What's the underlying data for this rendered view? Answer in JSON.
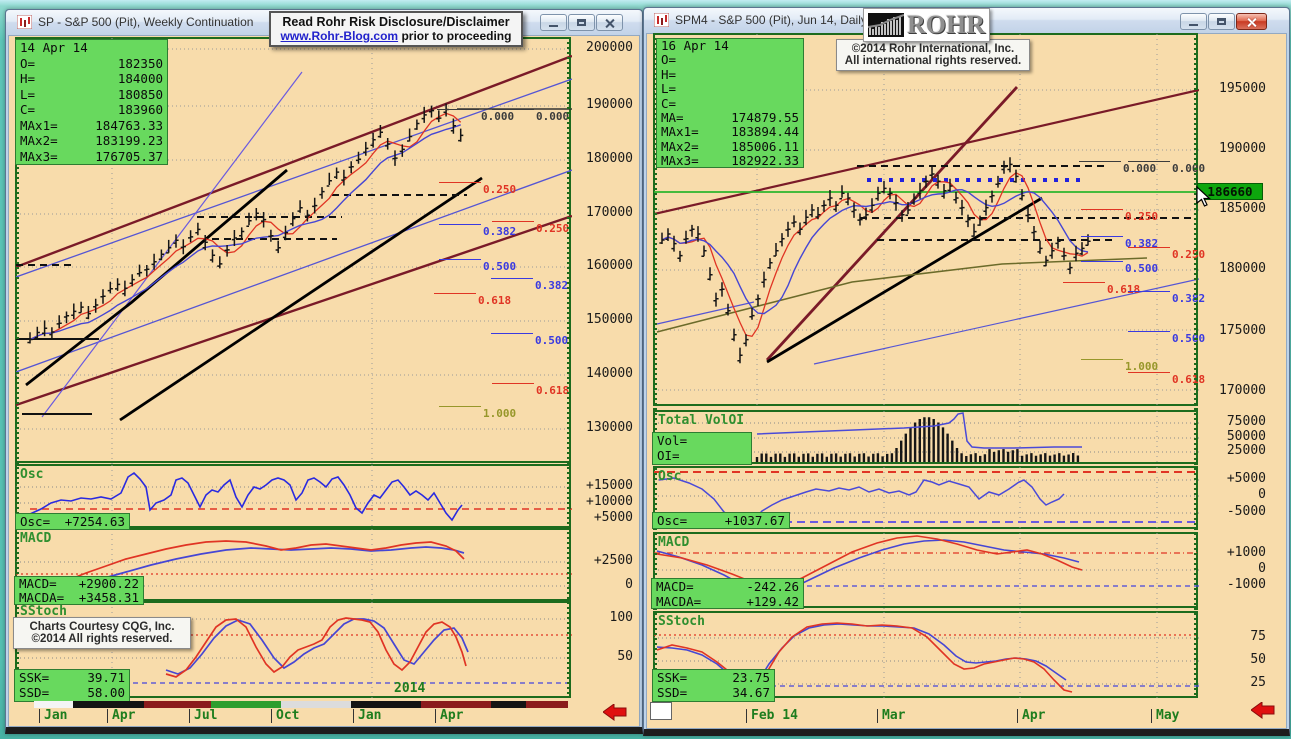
{
  "overlays": {
    "disclaimer_title": "Read Rohr Risk Disclosure/Disclaimer",
    "disclaimer_link": "www.Rohr-Blog.com",
    "disclaimer_rest": " prior to proceeding",
    "rohr_logo": "ROHR",
    "copyright_line1": "©2014  Rohr International, Inc.",
    "copyright_line2": "All international rights reserved.",
    "cqg_line1": "Charts Courtesy CQG, Inc.",
    "cqg_line2": "©2014 All rights reserved."
  },
  "left": {
    "title": "SP - S&P 500 (Pit), Weekly Continuation",
    "info": {
      "date": "14 Apr 14",
      "rows": [
        {
          "l": "O=",
          "v": "182350"
        },
        {
          "l": "H=",
          "v": "184000"
        },
        {
          "l": "L=",
          "v": "180850"
        },
        {
          "l": "C=",
          "v": "183960"
        },
        {
          "l": "MAx1=",
          "v": "184763.33"
        },
        {
          "l": "MAx2=",
          "v": "183199.23"
        },
        {
          "l": "MAx3=",
          "v": "176705.37"
        }
      ]
    },
    "scale": [
      "200000",
      "190000",
      "180000",
      "170000",
      "160000",
      "150000",
      "140000",
      "130000"
    ],
    "fib": [
      "0.000",
      "0.250",
      "0.382",
      "0.500",
      "0.618",
      "1.000"
    ],
    "osc": {
      "label": "Osc",
      "box_l": "Osc=",
      "box_v": "+7254.63",
      "scale": [
        "+15000",
        "+10000",
        "+5000"
      ]
    },
    "macd": {
      "label": "MACD",
      "rows": [
        {
          "l": "MACD=",
          "v": "+2900.22"
        },
        {
          "l": "MACDA=",
          "v": "+3458.31"
        }
      ],
      "scale": [
        "+2500",
        "0"
      ]
    },
    "sstoch": {
      "label": "SStoch",
      "rows": [
        {
          "l": "SSK=",
          "v": "39.71"
        },
        {
          "l": "SSD=",
          "v": "58.00"
        }
      ],
      "scale": [
        "100",
        "50"
      ]
    },
    "year": "2014",
    "months": [
      "Jan",
      "Apr",
      "Jul",
      "Oct",
      "Jan",
      "Apr"
    ]
  },
  "right": {
    "title": "SPM4 - S&P 500 (Pit), Jun 14, Daily",
    "info": {
      "date": "16 Apr 14",
      "rows": [
        {
          "l": "O=",
          "v": ""
        },
        {
          "l": "H=",
          "v": ""
        },
        {
          "l": "L=",
          "v": ""
        },
        {
          "l": "C=",
          "v": ""
        },
        {
          "l": "MA=",
          "v": "174879.55"
        },
        {
          "l": "MAx1=",
          "v": "183894.44"
        },
        {
          "l": "MAx2=",
          "v": "185006.11"
        },
        {
          "l": "MAx3=",
          "v": "182922.33"
        }
      ]
    },
    "scale": [
      "195000",
      "190000",
      "185000",
      "180000",
      "175000",
      "170000"
    ],
    "highlight": "186660",
    "fib": [
      "0.000",
      "0.250",
      "0.382",
      "0.500",
      "0.618",
      "1.000"
    ],
    "volio": {
      "label": "Total VolOI",
      "rows": [
        {
          "l": "Vol=",
          "v": ""
        },
        {
          "l": "OI=",
          "v": ""
        }
      ],
      "scale": [
        "75000",
        "50000",
        "25000"
      ]
    },
    "osc": {
      "label": "Osc",
      "box_l": "Osc=",
      "box_v": "+1037.67",
      "scale": [
        "+5000",
        "0",
        "-5000"
      ]
    },
    "macd": {
      "label": "MACD",
      "rows": [
        {
          "l": "MACD=",
          "v": "-242.26"
        },
        {
          "l": "MACDA=",
          "v": "+129.42"
        }
      ],
      "scale": [
        "+1000",
        "0",
        "-1000"
      ]
    },
    "sstoch": {
      "label": "SStoch",
      "rows": [
        {
          "l": "SSK=",
          "v": "23.75"
        },
        {
          "l": "SSD=",
          "v": "34.67"
        }
      ],
      "scale": [
        "75",
        "50",
        "25"
      ]
    },
    "months": [
      "Feb 14",
      "Mar",
      "Apr",
      "May"
    ]
  },
  "chart_data": [
    {
      "id": "bars-left",
      "type": "ohlc",
      "title": "S&P 500 (Pit) Weekly Continuation, approx closes (points, /1000 of axis units)",
      "x0": 14,
      "dx": 7.3,
      "yTop": 11,
      "pTop": 200,
      "k": 5.4,
      "ylim": [
        130000,
        200000
      ],
      "closes": [
        146.2,
        147.5,
        148.3,
        147.6,
        149.2,
        150.6,
        151.4,
        152.2,
        151.0,
        152.6,
        154.2,
        155.6,
        156.4,
        155.7,
        157.3,
        158.6,
        159.2,
        160.6,
        162.0,
        163.2,
        164.6,
        163.4,
        165.2,
        166.6,
        164.2,
        161.8,
        160.2,
        162.8,
        165.0,
        166.2,
        168.2,
        169.6,
        168.4,
        165.4,
        163.2,
        166.0,
        168.6,
        170.6,
        169.2,
        171.0,
        173.6,
        175.6,
        177.2,
        176.2,
        178.2,
        179.6,
        181.6,
        183.2,
        184.6,
        182.4,
        179.8,
        181.4,
        183.8,
        186.2,
        187.8,
        188.6,
        187.2,
        188.8,
        185.8,
        184.0
      ]
    },
    {
      "id": "bars-right",
      "type": "ohlc",
      "title": "S&P 500 (Pit) Jun 14 Daily, approx closes (points, /1000 of axis units)",
      "x0": 8,
      "dx": 6,
      "yTop": 56,
      "pTop": 195,
      "k": 12,
      "ylim": [
        170000,
        195000
      ],
      "closes": [
        182.5,
        183.0,
        182.2,
        181.2,
        182.6,
        183.4,
        183.0,
        181.6,
        179.6,
        177.6,
        178.4,
        176.6,
        174.6,
        172.9,
        174.2,
        176.2,
        177.6,
        179.2,
        180.6,
        181.6,
        182.6,
        183.4,
        184.0,
        183.4,
        184.4,
        185.0,
        184.6,
        185.4,
        186.0,
        185.4,
        186.4,
        186.0,
        185.0,
        184.2,
        184.6,
        185.4,
        186.4,
        186.8,
        186.4,
        185.6,
        184.6,
        185.0,
        186.0,
        186.6,
        187.4,
        188.0,
        187.4,
        186.6,
        187.0,
        186.0,
        185.2,
        184.2,
        183.2,
        184.2,
        185.2,
        186.2,
        187.2,
        188.6,
        188.8,
        187.8,
        186.2,
        184.6,
        183.2,
        181.8,
        180.8,
        181.6,
        182.4,
        181.2,
        180.2,
        181.4,
        181.8,
        182.4
      ]
    }
  ]
}
